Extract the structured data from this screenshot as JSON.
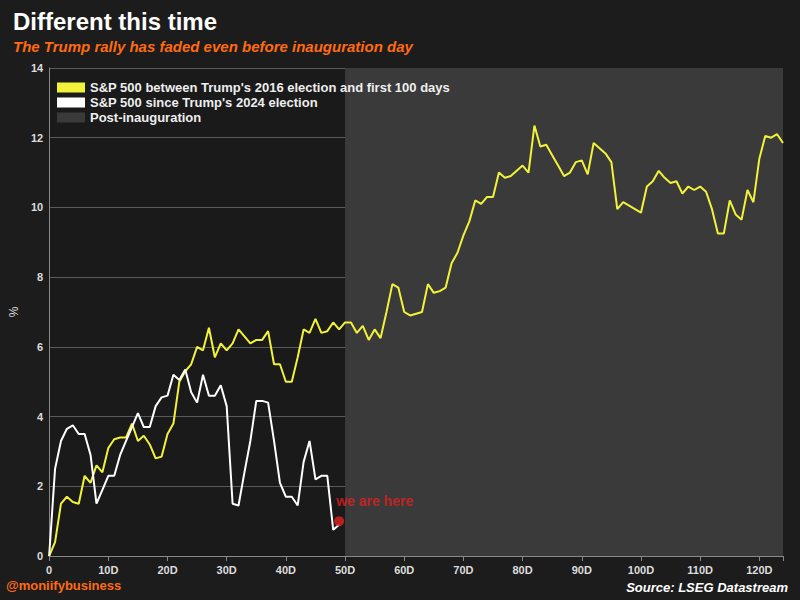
{
  "chart_data": {
    "type": "line",
    "title": "Different this time",
    "subtitle": "The Trump rally has faded even before inauguration day",
    "y_label": "%",
    "credit": "@moniifybusiness",
    "source": "Source: LSEG Datastream",
    "x": [
      0,
      1,
      2,
      3,
      4,
      5,
      6,
      7,
      8,
      9,
      10,
      11,
      12,
      13,
      14,
      15,
      16,
      17,
      18,
      19,
      20,
      21,
      22,
      23,
      24,
      25,
      26,
      27,
      28,
      29,
      30,
      31,
      32,
      33,
      34,
      35,
      36,
      37,
      38,
      39,
      40,
      41,
      42,
      43,
      44,
      45,
      46,
      47,
      48,
      49,
      50,
      51,
      52,
      53,
      54,
      55,
      56,
      57,
      58,
      59,
      60,
      61,
      62,
      63,
      64,
      65,
      66,
      67,
      68,
      69,
      70,
      71,
      72,
      73,
      74,
      75,
      76,
      77,
      78,
      79,
      80,
      81,
      82,
      83,
      84,
      85,
      86,
      87,
      88,
      89,
      90,
      91,
      92,
      93,
      94,
      95,
      96,
      97,
      98,
      99,
      100,
      101,
      102,
      103,
      104,
      105,
      106,
      107,
      108,
      109,
      110,
      111,
      112,
      113,
      114,
      115,
      116,
      117,
      118,
      119,
      120,
      121,
      122,
      123,
      124
    ],
    "series": [
      {
        "name": "S&P 500 between Trump's 2016 election and first 100 days",
        "color": "#f2f23a",
        "values": [
          0,
          0.4,
          1.5,
          1.7,
          1.55,
          1.5,
          2.3,
          2.1,
          2.6,
          2.4,
          3.1,
          3.35,
          3.4,
          3.4,
          3.8,
          3.3,
          3.45,
          3.2,
          2.8,
          2.85,
          3.5,
          3.8,
          5.0,
          5.3,
          5.5,
          6.0,
          5.9,
          6.55,
          5.7,
          6.1,
          5.9,
          6.1,
          6.5,
          6.3,
          6.1,
          6.2,
          6.2,
          6.45,
          5.5,
          5.5,
          5.0,
          5.0,
          5.7,
          6.5,
          6.4,
          6.8,
          6.4,
          6.45,
          6.7,
          6.5,
          6.7,
          6.7,
          6.4,
          6.6,
          6.2,
          6.5,
          6.25,
          7.0,
          7.8,
          7.7,
          7.0,
          6.9,
          6.95,
          7.0,
          7.8,
          7.55,
          7.6,
          7.7,
          8.4,
          8.7,
          9.2,
          9.6,
          10.2,
          10.1,
          10.3,
          10.3,
          11.0,
          10.85,
          10.9,
          11.05,
          11.2,
          11.0,
          12.35,
          11.75,
          11.8,
          11.5,
          11.2,
          10.9,
          11.0,
          11.3,
          11.35,
          10.95,
          11.85,
          11.7,
          11.55,
          11.3,
          9.95,
          10.15,
          10.05,
          9.95,
          9.85,
          10.6,
          10.75,
          11.05,
          10.85,
          10.7,
          10.75,
          10.4,
          10.6,
          10.5,
          10.6,
          10.45,
          9.95,
          9.25,
          9.25,
          10.2,
          9.8,
          9.65,
          10.5,
          10.15,
          11.4,
          12.05,
          12.0,
          12.1,
          11.85
        ]
      },
      {
        "name": "S&P 500 since Trump's 2024 election",
        "color": "#ffffff",
        "values": [
          0,
          2.5,
          3.3,
          3.65,
          3.75,
          3.5,
          3.5,
          2.9,
          1.5,
          1.9,
          2.3,
          2.3,
          2.9,
          3.3,
          3.7,
          4.1,
          3.7,
          3.7,
          4.3,
          4.55,
          4.6,
          5.2,
          5.05,
          5.35,
          4.7,
          4.4,
          5.2,
          4.6,
          4.6,
          4.9,
          4.3,
          1.5,
          1.45,
          2.4,
          3.3,
          4.45,
          4.45,
          4.4,
          3.3,
          2.1,
          1.7,
          1.7,
          1.45,
          2.7,
          3.3,
          2.2,
          2.3,
          2.3,
          0.75,
          0.9,
          null,
          null,
          null,
          null,
          null,
          null,
          null,
          null,
          null,
          null,
          null,
          null,
          null,
          null,
          null,
          null,
          null,
          null,
          null,
          null,
          null,
          null,
          null,
          null,
          null,
          null,
          null,
          null,
          null,
          null,
          null,
          null,
          null,
          null,
          null,
          null,
          null,
          null,
          null,
          null,
          null,
          null,
          null,
          null,
          null,
          null,
          null,
          null,
          null,
          null,
          null,
          null,
          null,
          null,
          null,
          null,
          null,
          null,
          null,
          null,
          null,
          null,
          null,
          null,
          null,
          null,
          null,
          null,
          null,
          null,
          null,
          null,
          null,
          null,
          null
        ]
      }
    ],
    "shaded_regions": [
      {
        "name": "Post-inauguration",
        "start": 50,
        "end": 124,
        "color": "#3a3a3a"
      }
    ],
    "annotations": [
      {
        "text": "we are here",
        "x": 49,
        "y": 1.0,
        "color": "#e02020"
      }
    ],
    "xlim": [
      0,
      124
    ],
    "xticks": [
      {
        "value": 0,
        "label": "0"
      },
      {
        "value": 10,
        "label": "10D"
      },
      {
        "value": 20,
        "label": "20D"
      },
      {
        "value": 30,
        "label": "30D"
      },
      {
        "value": 40,
        "label": "40D"
      },
      {
        "value": 50,
        "label": "50D"
      },
      {
        "value": 60,
        "label": "60D"
      },
      {
        "value": 70,
        "label": "70D"
      },
      {
        "value": 80,
        "label": "80D"
      },
      {
        "value": 90,
        "label": "90D"
      },
      {
        "value": 100,
        "label": "100D"
      },
      {
        "value": 110,
        "label": "110D"
      },
      {
        "value": 120,
        "label": "120D"
      }
    ],
    "ylim": [
      0,
      14
    ],
    "yticks": [
      0,
      2,
      4,
      6,
      8,
      10,
      12,
      14
    ],
    "grid": true,
    "legend": "top-left"
  }
}
